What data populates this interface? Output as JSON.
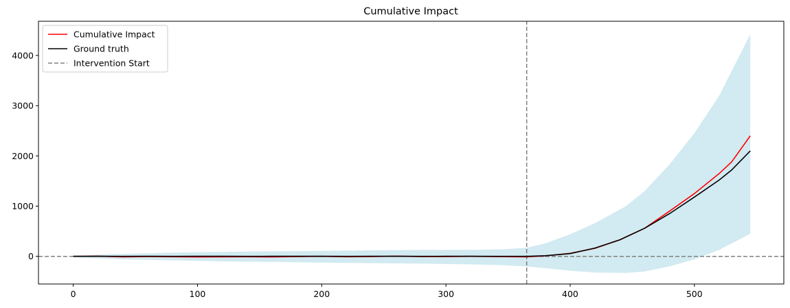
{
  "chart_data": {
    "type": "line",
    "title": "Cumulative Impact",
    "xlabel": "",
    "ylabel": "",
    "xlim": [
      -28,
      572
    ],
    "ylim": [
      -550,
      4680
    ],
    "x_ticks": [
      0,
      100,
      200,
      300,
      400,
      500
    ],
    "x_tick_labels": [
      "0",
      "100",
      "200",
      "300",
      "400",
      "500"
    ],
    "y_ticks": [
      0,
      1000,
      2000,
      3000,
      4000
    ],
    "y_tick_labels": [
      "0",
      "1000",
      "2000",
      "3000",
      "4000"
    ],
    "grid": false,
    "legend_position": "top-left",
    "intervention_start": 365,
    "zero_line": 0,
    "series": [
      {
        "name": "Cumulative Impact",
        "color": "#ff0000",
        "x": [
          0,
          20,
          40,
          60,
          80,
          100,
          120,
          140,
          160,
          180,
          200,
          220,
          240,
          260,
          280,
          300,
          320,
          340,
          365,
          380,
          400,
          420,
          440,
          460,
          480,
          500,
          520,
          530,
          545
        ],
        "y": [
          0,
          5,
          -10,
          -5,
          -8,
          -12,
          -10,
          -8,
          -12,
          -5,
          0,
          -8,
          -5,
          5,
          -5,
          -5,
          0,
          -5,
          -10,
          10,
          60,
          160,
          330,
          560,
          900,
          1250,
          1650,
          1880,
          2400
        ]
      },
      {
        "name": "Ground truth",
        "color": "#000000",
        "x": [
          0,
          20,
          40,
          60,
          80,
          100,
          120,
          140,
          160,
          180,
          200,
          220,
          240,
          260,
          280,
          300,
          320,
          340,
          365,
          380,
          400,
          420,
          440,
          460,
          480,
          500,
          520,
          530,
          545
        ],
        "y": [
          0,
          2,
          0,
          2,
          0,
          2,
          2,
          0,
          2,
          2,
          2,
          0,
          2,
          2,
          0,
          2,
          2,
          0,
          0,
          12,
          55,
          165,
          330,
          560,
          850,
          1180,
          1520,
          1720,
          2100
        ]
      },
      {
        "name": "Intervention Start",
        "color": "#808080",
        "style": "dashed",
        "x": [
          365,
          365
        ],
        "y": [
          -550,
          4680
        ]
      }
    ],
    "interval": {
      "color": "#add8e6",
      "x": [
        0,
        40,
        80,
        120,
        160,
        200,
        240,
        280,
        320,
        345,
        365,
        380,
        400,
        420,
        445,
        460,
        480,
        500,
        520,
        545
      ],
      "lower": [
        -20,
        -60,
        -80,
        -100,
        -110,
        -125,
        -135,
        -145,
        -160,
        -175,
        -200,
        -235,
        -285,
        -320,
        -330,
        -300,
        -200,
        -60,
        130,
        450
      ],
      "upper": [
        20,
        50,
        75,
        90,
        100,
        110,
        120,
        130,
        130,
        140,
        170,
        260,
        440,
        660,
        1000,
        1300,
        1830,
        2450,
        3200,
        4420
      ]
    }
  }
}
